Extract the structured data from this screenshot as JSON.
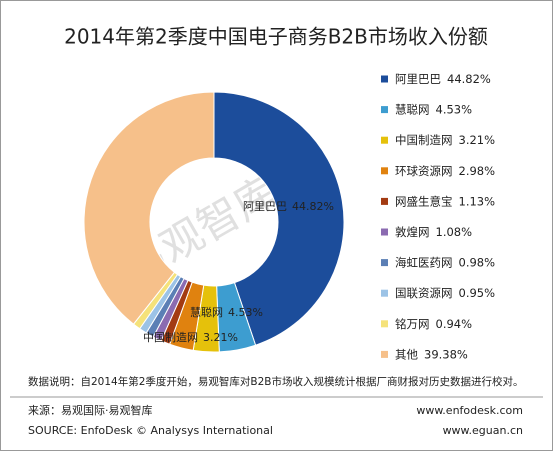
{
  "chart_data": {
    "type": "pie",
    "donut": true,
    "title": "2014年第2季度中国电子商务B2B市场收入份额",
    "categories": [
      "阿里巴巴",
      "慧聪网",
      "中国制造网",
      "环球资源网",
      "网盛生意宝",
      "敦煌网",
      "海虹医药网",
      "国联资源网",
      "铭万网",
      "其他"
    ],
    "values": [
      44.82,
      4.53,
      3.21,
      2.98,
      1.13,
      1.08,
      0.98,
      0.95,
      0.94,
      39.38
    ],
    "value_labels": [
      "44.82%",
      "4.53%",
      "3.21%",
      "2.98%",
      "1.13%",
      "1.08%",
      "0.98%",
      "0.95%",
      "0.94%",
      "39.38%"
    ],
    "colors": [
      "#1c4d9b",
      "#3d9dd0",
      "#e5c10b",
      "#e0820f",
      "#a33b12",
      "#8b6bb1",
      "#5b7fb5",
      "#9cc3e6",
      "#f5e27a",
      "#f6c08a"
    ],
    "legend": "right"
  },
  "watermark": "易观智库",
  "footer": {
    "note": "数据说明：自2014年第2季度开始，易观智库对B2B市场收入规模统计根据厂商财报对历史数据进行校对。",
    "source": "来源：易观国际·易观智库",
    "site1": "www.enfodesk.com",
    "source_en": "SOURCE: EnfoDesk © Analysys International",
    "site2": "www.eguan.cn"
  }
}
